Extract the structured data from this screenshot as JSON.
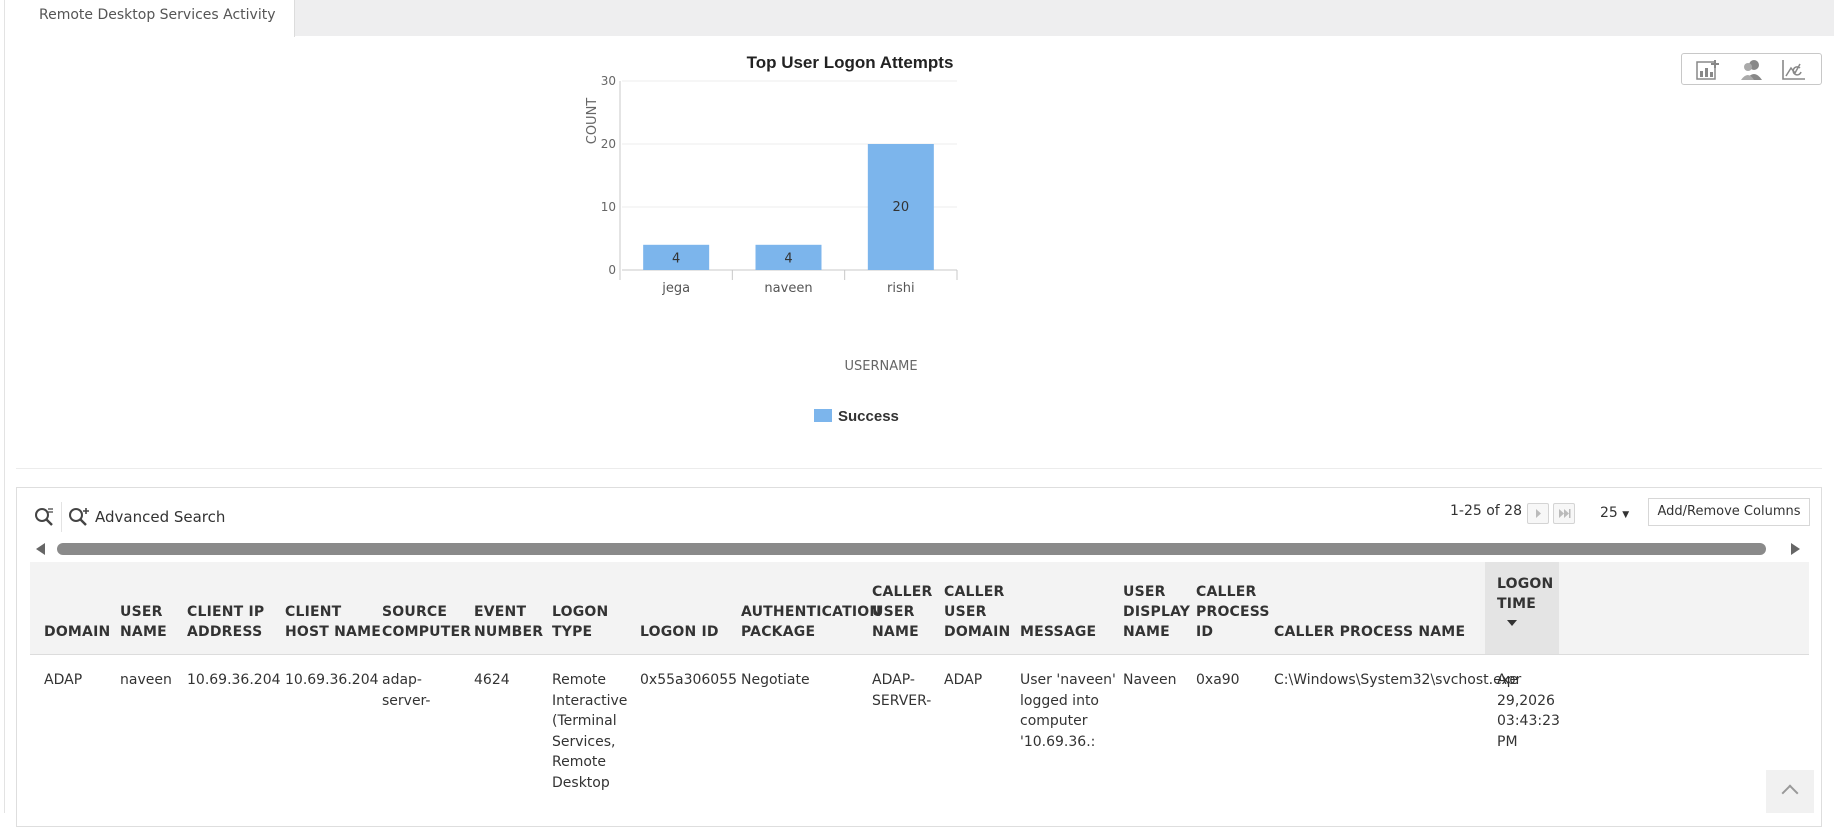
{
  "tab": {
    "label": "Remote Desktop Services Activity"
  },
  "chart_tools": [
    "add-chart-icon",
    "users-icon",
    "chart-type-icon"
  ],
  "chart_data": {
    "type": "bar",
    "title": "Top User Logon Attempts",
    "xlabel": "USERNAME",
    "ylabel": "COUNT",
    "categories": [
      "jega",
      "naveen",
      "rishi"
    ],
    "series": [
      {
        "name": "Success",
        "values": [
          4,
          4,
          20
        ],
        "color": "#7cb5ec"
      }
    ],
    "ylim": [
      0,
      30
    ],
    "yticks": [
      0,
      10,
      20,
      30
    ],
    "grid": true,
    "legend": "bottom"
  },
  "toolbar": {
    "advanced_search": "Advanced Search",
    "pager": "1-25 of 28",
    "page_size": "25",
    "add_remove": "Add/Remove Columns"
  },
  "table": {
    "columns": [
      [
        "DOMAIN"
      ],
      [
        "USER",
        "NAME"
      ],
      [
        "CLIENT IP",
        "ADDRESS"
      ],
      [
        "CLIENT",
        "HOST NAME"
      ],
      [
        "SOURCE",
        "COMPUTER"
      ],
      [
        "EVENT",
        "NUMBER"
      ],
      [
        "LOGON",
        "TYPE"
      ],
      [
        "LOGON ID"
      ],
      [
        "AUTHENTICATION",
        "PACKAGE"
      ],
      [
        "CALLER",
        "USER",
        "NAME"
      ],
      [
        "CALLER",
        "USER",
        "DOMAIN"
      ],
      [
        "MESSAGE"
      ],
      [
        "USER",
        "DISPLAY",
        "NAME"
      ],
      [
        "CALLER",
        "PROCESS",
        "ID"
      ],
      [
        "CALLER PROCESS NAME"
      ],
      [
        "LOGON",
        "TIME"
      ]
    ],
    "rows": [
      [
        [
          "ADAP"
        ],
        [
          "naveen"
        ],
        [
          "10.69.36.204"
        ],
        [
          "10.69.36.204"
        ],
        [
          "adap-",
          "server-"
        ],
        [
          "4624"
        ],
        [
          "Remote",
          "Interactive",
          "(Terminal",
          "Services,",
          "Remote",
          "Desktop"
        ],
        [
          "0x55a306055"
        ],
        [
          "Negotiate"
        ],
        [
          "ADAP-",
          "SERVER-"
        ],
        [
          "ADAP"
        ],
        [
          "User 'naveen'",
          "logged into",
          "computer",
          "'10.69.36.:"
        ],
        [
          "Naveen"
        ],
        [
          "0xa90"
        ],
        [
          "C:\\Windows\\System32\\svchost.exe"
        ],
        [
          "Apr",
          "29,2026",
          "03:43:23",
          "PM"
        ]
      ]
    ]
  }
}
